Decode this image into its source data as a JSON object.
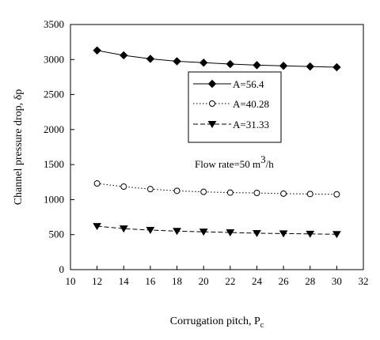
{
  "chart_data": {
    "type": "line",
    "xlabel": "Corrugation pitch, P",
    "xlabel_sub": "c",
    "ylabel": "Channel pressure drop, δp",
    "xlim": [
      10,
      32
    ],
    "ylim": [
      0,
      3500
    ],
    "xticks": [
      "10",
      "12",
      "14",
      "16",
      "18",
      "20",
      "22",
      "24",
      "26",
      "28",
      "30",
      "32"
    ],
    "yticks": [
      "0",
      "500",
      "1000",
      "1500",
      "2000",
      "2500",
      "3000",
      "3500"
    ],
    "grid": false,
    "legend_position": "upper-right",
    "x": [
      12,
      14,
      16,
      18,
      20,
      22,
      24,
      26,
      28,
      30
    ],
    "series": [
      {
        "name": "A=56.4",
        "marker": "filled-diamond",
        "line": "solid",
        "values": [
          3130,
          3060,
          3010,
          2975,
          2955,
          2935,
          2920,
          2910,
          2900,
          2890
        ]
      },
      {
        "name": "A=40.28",
        "marker": "open-circle",
        "line": "dotted",
        "values": [
          1230,
          1185,
          1150,
          1125,
          1110,
          1100,
          1095,
          1085,
          1080,
          1075
        ]
      },
      {
        "name": "A=31.33",
        "marker": "filled-triangle-down",
        "line": "dashed",
        "values": [
          620,
          585,
          565,
          550,
          540,
          530,
          520,
          515,
          510,
          505
        ]
      }
    ],
    "annotation": {
      "text": "Flow rate=50 m",
      "sup": "3",
      "suffix": "/h"
    }
  }
}
